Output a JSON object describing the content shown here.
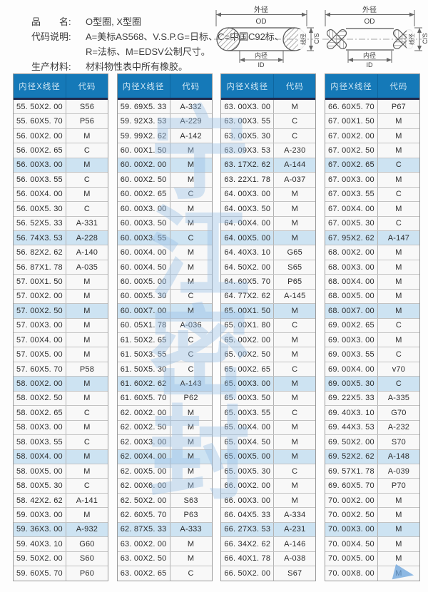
{
  "info": {
    "line1_label": "品　　名:",
    "line1_value": "O型圈, X型圈",
    "line2_label": "代码说明:",
    "line2_value": "A=美标AS568、V.S.P.G=日标、C=中国C92标、",
    "line3_value": "R=法标、M=EDSV公制尺寸。",
    "line4_label": "生产材料:",
    "line4_value": "材料物性表中所有橡胶。"
  },
  "diagrams": {
    "o": {
      "od_cn": "外径",
      "od_en": "OD",
      "id_cn": "内径",
      "id_en": "ID",
      "cs_cn": "线径",
      "cs_en": "C/S"
    },
    "x": {
      "od_cn": "外径",
      "od_en": "OD",
      "id_cn": "内径",
      "id_en": "ID",
      "cs_cn": "线径",
      "cs_en": "C/S"
    }
  },
  "table": {
    "col_size_header": "内径X线径",
    "col_code_header": "代码",
    "groups": [
      [
        [
          "55. 50X2. 00",
          "S56"
        ],
        [
          "55. 60X5. 70",
          "P56"
        ],
        [
          "56. 00X2. 00",
          "M"
        ],
        [
          "56. 00X2. 65",
          "C"
        ],
        [
          "56. 00X3. 00",
          "M"
        ],
        [
          "56. 00X3. 55",
          "C"
        ],
        [
          "56. 00X4. 00",
          "M"
        ],
        [
          "56. 00X5. 30",
          "C"
        ],
        [
          "56. 52X5. 33",
          "A-331"
        ],
        [
          "56. 74X3. 53",
          "A-228"
        ],
        [
          "56. 82X2. 62",
          "A-140"
        ],
        [
          "56. 87X1. 78",
          "A-035"
        ],
        [
          "57. 00X1. 50",
          "M"
        ],
        [
          "57. 00X2. 00",
          "M"
        ],
        [
          "57. 00X2. 50",
          "M"
        ],
        [
          "57. 00X3. 00",
          "M"
        ],
        [
          "57. 00X4. 00",
          "M"
        ],
        [
          "57. 00X5. 00",
          "M"
        ],
        [
          "57. 60X5. 70",
          "P58"
        ],
        [
          "58. 00X2. 00",
          "M"
        ],
        [
          "58. 00X2. 50",
          "M"
        ],
        [
          "58. 00X2. 65",
          "C"
        ],
        [
          "58. 00X3. 00",
          "M"
        ],
        [
          "58. 00X3. 55",
          "C"
        ],
        [
          "58. 00X4. 00",
          "M"
        ],
        [
          "58. 00X5. 00",
          "M"
        ],
        [
          "58. 00X5. 30",
          "C"
        ],
        [
          "58. 42X2. 62",
          "A-141"
        ],
        [
          "59. 00X3. 00",
          "M"
        ],
        [
          "59. 36X3. 00",
          "A-932"
        ],
        [
          "59. 40X3. 10",
          "G60"
        ],
        [
          "59. 50X2. 00",
          "S60"
        ],
        [
          "59. 60X5. 70",
          "P60"
        ]
      ],
      [
        [
          "59. 69X5. 33",
          "A-332"
        ],
        [
          "59. 92X3. 53",
          "A-229"
        ],
        [
          "59. 99X2. 62",
          "A-142"
        ],
        [
          "60. 00X1. 50",
          "M"
        ],
        [
          "60. 00X2. 00",
          "M"
        ],
        [
          "60. 00X2. 50",
          "M"
        ],
        [
          "60. 00X2. 65",
          "C"
        ],
        [
          "60. 00X3. 00",
          "M"
        ],
        [
          "60. 00X3. 50",
          "M"
        ],
        [
          "60. 00X3. 55",
          "C"
        ],
        [
          "60. 00X4. 00",
          "M"
        ],
        [
          "60. 00X4. 50",
          "M"
        ],
        [
          "60. 00X5. 00",
          "M"
        ],
        [
          "60. 00X5. 30",
          "C"
        ],
        [
          "60. 00X7. 00",
          "M"
        ],
        [
          "60. 05X1. 78",
          "A-036"
        ],
        [
          "61. 50X2. 65",
          "C"
        ],
        [
          "61. 50X3. 55",
          "C"
        ],
        [
          "61. 50X5. 30",
          "C"
        ],
        [
          "61. 60X2. 62",
          "A-143"
        ],
        [
          "61. 60X5. 70",
          "P62"
        ],
        [
          "62. 00X2. 00",
          "M"
        ],
        [
          "62. 00X2. 50",
          "M"
        ],
        [
          "62. 00X3. 00",
          "M"
        ],
        [
          "62. 00X4. 00",
          "M"
        ],
        [
          "62. 00X5. 00",
          "M"
        ],
        [
          "62. 00X6. 00",
          "M"
        ],
        [
          "62. 50X2. 00",
          "S63"
        ],
        [
          "62. 60X5. 70",
          "P63"
        ],
        [
          "62. 87X5. 33",
          "A-333"
        ],
        [
          "63. 00X2. 00",
          "M"
        ],
        [
          "63. 00X2. 50",
          "M"
        ],
        [
          "63. 00X2. 65",
          "C"
        ]
      ],
      [
        [
          "63. 00X3. 00",
          "M"
        ],
        [
          "63. 00X3. 55",
          "C"
        ],
        [
          "63. 00X5. 30",
          "C"
        ],
        [
          "63. 09X3. 53",
          "A-230"
        ],
        [
          "63. 17X2. 62",
          "A-144"
        ],
        [
          "63. 22X1. 78",
          "A-037"
        ],
        [
          "64. 00X3. 00",
          "M"
        ],
        [
          "64. 00X3. 50",
          "M"
        ],
        [
          "64. 00X4. 00",
          "M"
        ],
        [
          "64. 00X5. 00",
          "M"
        ],
        [
          "64. 40X3. 10",
          "G65"
        ],
        [
          "64. 50X2. 00",
          "S65"
        ],
        [
          "64. 60X5. 70",
          "P65"
        ],
        [
          "64. 77X2. 62",
          "A-145"
        ],
        [
          "65. 00X1. 50",
          "M"
        ],
        [
          "65. 00X1. 80",
          "C"
        ],
        [
          "65. 00X2. 00",
          "M"
        ],
        [
          "65. 00X2. 50",
          "M"
        ],
        [
          "65. 00X2. 65",
          "C"
        ],
        [
          "65. 00X3. 00",
          "M"
        ],
        [
          "65. 00X3. 50",
          "M"
        ],
        [
          "65. 00X3. 55",
          "C"
        ],
        [
          "65. 00X4. 00",
          "M"
        ],
        [
          "65. 00X4. 50",
          "M"
        ],
        [
          "65. 00X5. 00",
          "M"
        ],
        [
          "65. 00X5. 30",
          "C"
        ],
        [
          "66. 00X2. 00",
          "M"
        ],
        [
          "66. 00X3. 00",
          "M"
        ],
        [
          "66. 04X5. 33",
          "A-334"
        ],
        [
          "66. 27X3. 53",
          "A-231"
        ],
        [
          "66. 34X2. 62",
          "A-146"
        ],
        [
          "66. 40X1. 78",
          "A-038"
        ],
        [
          "66. 50X2. 00",
          "S67"
        ]
      ],
      [
        [
          "66. 60X5. 70",
          "P67"
        ],
        [
          "67. 00X1. 50",
          "M"
        ],
        [
          "67. 00X2. 00",
          "M"
        ],
        [
          "67. 00X2. 50",
          "M"
        ],
        [
          "67. 00X2. 65",
          "C"
        ],
        [
          "67. 00X3. 00",
          "M"
        ],
        [
          "67. 00X3. 55",
          "C"
        ],
        [
          "67. 00X4. 00",
          "M"
        ],
        [
          "67. 00X5. 30",
          "C"
        ],
        [
          "67. 95X2. 62",
          "A-147"
        ],
        [
          "68. 00X2. 00",
          "M"
        ],
        [
          "68. 00X3. 00",
          "M"
        ],
        [
          "68. 00X4. 00",
          "M"
        ],
        [
          "68. 00X5. 00",
          "M"
        ],
        [
          "68. 00X7. 00",
          "M"
        ],
        [
          "69. 00X2. 65",
          "C"
        ],
        [
          "69. 00X3. 00",
          "M"
        ],
        [
          "69. 00X3. 55",
          "C"
        ],
        [
          "69. 00X4. 00",
          "v70"
        ],
        [
          "69. 00X5. 30",
          "C"
        ],
        [
          "69. 22X5. 33",
          "A-335"
        ],
        [
          "69. 40X3. 10",
          "G70"
        ],
        [
          "69. 44X3. 53",
          "A-232"
        ],
        [
          "69. 50X2. 00",
          "S70"
        ],
        [
          "69. 52X2. 62",
          "A-148"
        ],
        [
          "69. 57X1. 78",
          "A-039"
        ],
        [
          "69. 60X5. 70",
          "P70"
        ],
        [
          "70. 00X2. 00",
          "M"
        ],
        [
          "70. 00X2. 50",
          "M"
        ],
        [
          "70. 00X3. 00",
          "M"
        ],
        [
          "70. 00X4. 50",
          "M"
        ],
        [
          "70. 00X5. 00",
          "M"
        ],
        [
          "70. 00X8. 00",
          "M"
        ]
      ]
    ]
  },
  "watermark": {
    "chars": [
      "宁",
      "江",
      "密",
      "封"
    ]
  },
  "colors": {
    "header_blue": "#1579b8",
    "header_text": "#cfe6f3",
    "row_highlight": "#cde3f2",
    "navy": "#1e2a4d",
    "watermark": "#98bfe6"
  }
}
